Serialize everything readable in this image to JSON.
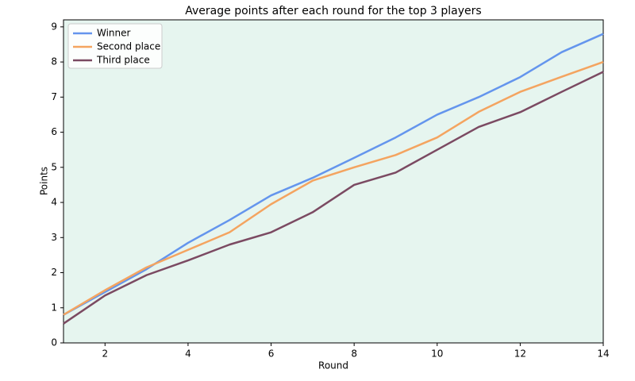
{
  "chart_data": {
    "type": "line",
    "title": "Average points after each round for the top 3 players",
    "x_label": "Round",
    "y_label": "Points",
    "x": [
      1,
      2,
      3,
      4,
      5,
      6,
      7,
      8,
      9,
      10,
      11,
      12,
      13,
      14
    ],
    "series": [
      {
        "name": "Winner",
        "color": "#6495ed",
        "values": [
          0.8,
          1.45,
          2.1,
          2.85,
          3.5,
          4.2,
          4.7,
          5.27,
          5.85,
          6.5,
          7.0,
          7.57,
          8.28,
          8.8
        ]
      },
      {
        "name": "Second place",
        "color": "#f4a460",
        "values": [
          0.8,
          1.5,
          2.15,
          2.65,
          3.15,
          3.95,
          4.62,
          5.0,
          5.35,
          5.85,
          6.58,
          7.15,
          7.58,
          8.0
        ]
      },
      {
        "name": "Third place",
        "color": "#7b4a62",
        "values": [
          0.55,
          1.35,
          1.93,
          2.35,
          2.8,
          3.15,
          3.72,
          4.5,
          4.85,
          5.5,
          6.15,
          6.57,
          7.15,
          7.72
        ]
      }
    ],
    "xlim": [
      1,
      14
    ],
    "xticks": [
      2,
      4,
      6,
      8,
      10,
      12,
      14
    ],
    "ylim": [
      0,
      9.2
    ],
    "yticks": [
      0,
      1,
      2,
      3,
      4,
      5,
      6,
      7,
      8,
      9
    ],
    "legend": "upper left",
    "plot_background": "#e6f5ef"
  }
}
